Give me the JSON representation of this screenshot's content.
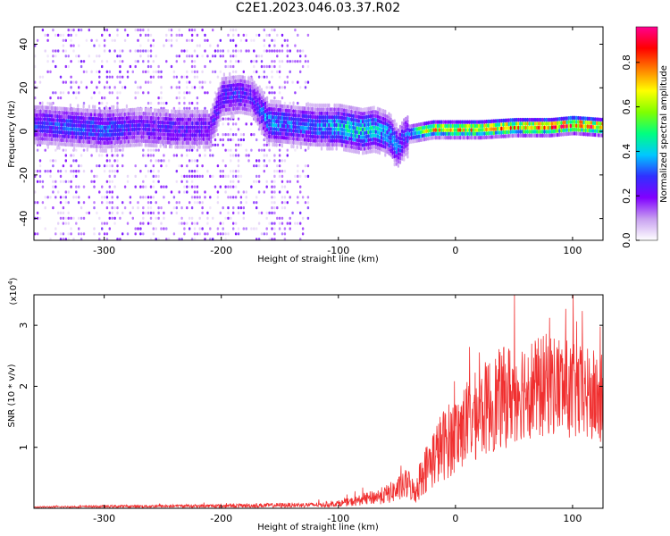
{
  "title": "C2E1.2023.046.03.37.R02",
  "colors": {
    "axis": "#000000",
    "snr_line": "#f03030",
    "colorbar_stops": [
      "#ffffff",
      "#c8a0f0",
      "#8000ff",
      "#3030ff",
      "#00c8ff",
      "#00ff80",
      "#80ff00",
      "#ffff00",
      "#ff8000",
      "#ff0000",
      "#ff0090"
    ]
  },
  "chart_data": [
    {
      "type": "heatmap",
      "title": "",
      "xlabel": "Height of straight line (km)",
      "ylabel": "Frequency (Hz)",
      "xlim": [
        -360,
        126
      ],
      "ylim": [
        -50,
        48
      ],
      "xticks": [
        -300,
        -200,
        -100,
        0,
        100
      ],
      "yticks": [
        -40,
        -20,
        0,
        20,
        40
      ],
      "colorbar": {
        "label": "Normalized spectral amplitude",
        "range": [
          0.0,
          0.96
        ],
        "ticks": [
          "0.0",
          "0.2",
          "0.4",
          "0.6",
          "0.8"
        ],
        "tick_values": [
          0.0,
          0.2,
          0.4,
          0.6,
          0.8
        ]
      },
      "ridge": {
        "x": [
          -355,
          -330,
          -300,
          -270,
          -240,
          -210,
          -200,
          -185,
          -175,
          -160,
          -140,
          -120,
          -100,
          -80,
          -70,
          -60,
          -55,
          -50,
          -45,
          -40,
          -30,
          -20,
          0,
          20,
          50,
          80,
          100,
          126
        ],
        "y": [
          3,
          2,
          1,
          2,
          1,
          1,
          16,
          17,
          16,
          4,
          3,
          2,
          2,
          0,
          1,
          -1,
          -3,
          -8,
          -3,
          -1,
          0,
          1,
          1,
          1,
          2,
          2,
          3,
          2
        ],
        "amplitude": [
          0.3,
          0.32,
          0.35,
          0.25,
          0.28,
          0.25,
          0.3,
          0.3,
          0.25,
          0.4,
          0.35,
          0.35,
          0.45,
          0.5,
          0.45,
          0.4,
          0.4,
          0.35,
          0.3,
          0.4,
          0.65,
          0.75,
          0.8,
          0.82,
          0.85,
          0.88,
          0.9,
          0.9
        ]
      },
      "scatter_region_x": [
        -360,
        -125
      ]
    },
    {
      "type": "line",
      "title": "",
      "xlabel": "Height of straight line (km)",
      "ylabel": "SNR (10 * v/v)",
      "y_multiplier": "(x10",
      "y_multiplier_exp": "4",
      "y_multiplier_close": ")",
      "xlim": [
        -360,
        126
      ],
      "ylim": [
        0,
        3.5
      ],
      "xticks": [
        -300,
        -200,
        -100,
        0,
        100
      ],
      "yticks": [
        1,
        2,
        3
      ],
      "series": [
        {
          "color": "#f03030",
          "x": [
            -360,
            -300,
            -200,
            -150,
            -110,
            -100,
            -90,
            -80,
            -70,
            -60,
            -50,
            -40,
            -35,
            -30,
            -25,
            -20,
            -10,
            0,
            10,
            20,
            30,
            40,
            50,
            60,
            70,
            80,
            90,
            100,
            110,
            120,
            126
          ],
          "y": [
            0.02,
            0.03,
            0.04,
            0.05,
            0.06,
            0.08,
            0.1,
            0.14,
            0.18,
            0.22,
            0.3,
            0.4,
            0.25,
            0.5,
            0.65,
            0.8,
            1.05,
            1.2,
            1.4,
            1.55,
            1.7,
            1.8,
            1.9,
            2.0,
            1.95,
            2.05,
            2.0,
            1.9,
            1.85,
            1.8,
            1.75
          ],
          "spread": [
            0.01,
            0.02,
            0.03,
            0.04,
            0.04,
            0.05,
            0.07,
            0.09,
            0.12,
            0.15,
            0.2,
            0.25,
            0.2,
            0.35,
            0.4,
            0.5,
            0.6,
            0.65,
            0.7,
            0.75,
            0.8,
            0.85,
            0.85,
            0.85,
            0.85,
            0.85,
            0.85,
            0.8,
            0.8,
            0.8,
            0.8
          ]
        }
      ]
    }
  ]
}
